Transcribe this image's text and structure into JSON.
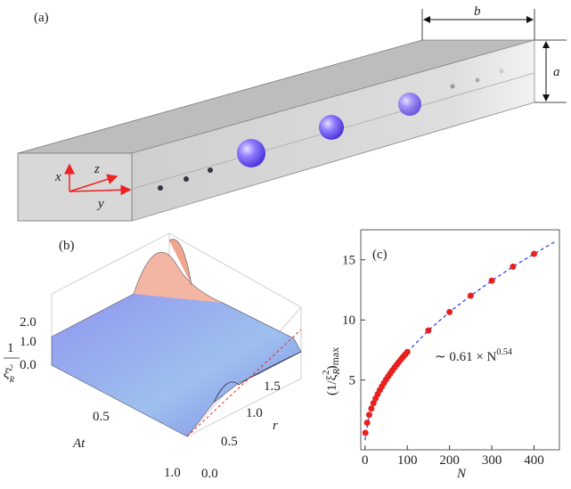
{
  "panel_a": {
    "label": "(a)",
    "width_label": "b",
    "height_label": "a",
    "axis_labels": [
      "x",
      "z",
      "y"
    ]
  },
  "panel_b": {
    "label": "(b)",
    "z_label": {
      "numerator": "1",
      "symbol": "ξ",
      "subscript": "R",
      "superscript": "2"
    },
    "z_ticks": [
      "2.0",
      "1.0",
      "0.0"
    ],
    "at_label": "At",
    "at_ticks": [
      "0.5",
      "1.0"
    ],
    "r_label": "r",
    "r_ticks": [
      "0.0",
      "0.5",
      "1.0",
      "1.5"
    ]
  },
  "chart_data": {
    "type": "scatter",
    "panel_label": "(c)",
    "xlabel": "N",
    "ylabel": {
      "text": "(1/ξ",
      "subscript": "R",
      "superscript": "2",
      "close": ")",
      "suffix": "max"
    },
    "annotation": {
      "base": "∼ 0.61 × N",
      "exponent": "0.54"
    },
    "series": [
      {
        "color": "#e8201e",
        "x": [
          1,
          5,
          10,
          15,
          20,
          25,
          30,
          35,
          40,
          45,
          50,
          55,
          60,
          65,
          70,
          75,
          80,
          85,
          90,
          95,
          100,
          150,
          200,
          250,
          300,
          350,
          400
        ],
        "values": [
          0.61,
          1.45,
          2.11,
          2.63,
          3.08,
          3.47,
          3.83,
          4.16,
          4.47,
          4.77,
          5.05,
          5.31,
          5.56,
          5.81,
          6.05,
          6.28,
          6.5,
          6.72,
          6.93,
          7.13,
          7.33,
          9.13,
          10.66,
          12.02,
          13.27,
          14.43,
          15.5
        ]
      }
    ],
    "fit": {
      "color": "#2b3be0",
      "x": [
        0,
        10,
        25,
        50,
        100,
        150,
        200,
        250,
        300,
        350,
        400,
        450
      ],
      "values": [
        0,
        2.11,
        3.47,
        5.05,
        7.33,
        9.13,
        10.66,
        12.02,
        13.27,
        14.43,
        15.5,
        16.52
      ]
    },
    "xlim": [
      -10,
      460
    ],
    "ylim": [
      -0.8,
      17.5
    ],
    "xticks": [
      0,
      100,
      200,
      300,
      400
    ],
    "yticks": [
      5,
      10,
      15
    ]
  }
}
